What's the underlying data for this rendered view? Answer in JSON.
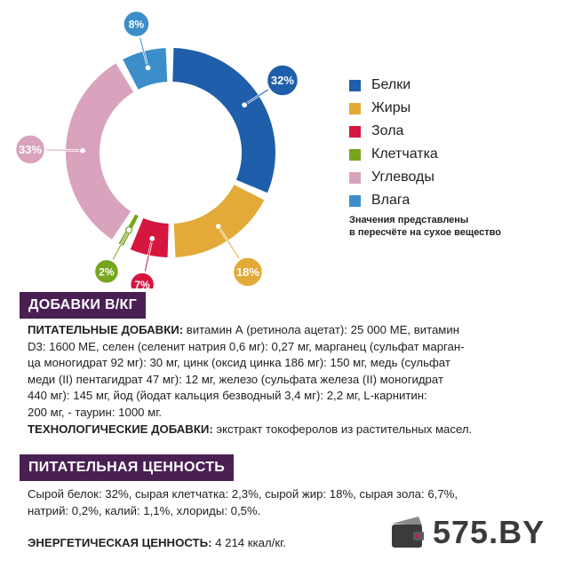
{
  "chart_data": {
    "type": "pie",
    "donut": true,
    "categories": [
      "Белки",
      "Жиры",
      "Зола",
      "Клетчатка",
      "Углеводы",
      "Влага"
    ],
    "values": [
      32,
      18,
      7,
      2,
      33,
      8
    ],
    "labels": [
      "32%",
      "18%",
      "7%",
      "2%",
      "33%",
      "8%"
    ],
    "colors": [
      "#1f5eaa",
      "#e3aa38",
      "#d5163f",
      "#77a51e",
      "#d9a3bd",
      "#3b8ec9"
    ],
    "legend_position": "right",
    "note_lines": [
      "Значения представлены",
      "в пересчёте на сухое вещество"
    ]
  },
  "additives": {
    "header": "ДОБАВКИ В/КГ",
    "nutritional_label": "ПИТАТЕЛЬНЫЕ ДОБАВКИ:",
    "nutritional_lines": [
      " витамин А (ретинола ацетат): 25 000 МЕ, витамин",
      "D3: 1600 МЕ, селен (селенит натрия 0,6 мг): 0,27 мг, марганец (сульфат марган-",
      "ца моногидрат 92 мг): 30 мг, цинк (оксид цинка 186 мг): 150 мг, медь (сульфат",
      "меди (II) пентагидрат 47 мг): 12 мг, железо (сульфата железа (II) моногидрат",
      "440 мг): 145 мг, йод (йодат кальция безводный 3,4 мг): 2,2 мг, L-карнитин:",
      "200 мг, - таурин: 1000 мг."
    ],
    "tech_label": "ТЕХНОЛОГИЧЕСКИЕ ДОБАВКИ:",
    "tech_text": " экстракт токоферолов из растительных масел."
  },
  "nutrition": {
    "header": "ПИТАТЕЛЬНАЯ ЦЕННОСТЬ",
    "lines": [
      "Сырой белок: 32%, сырая клетчатка: 2,3%, сырой жир: 18%, сырая зола: 6,7%,",
      "натрий: 0,2%, калий: 1,1%, хлориды: 0,5%."
    ],
    "energy_label": "ЭНЕРГЕТИЧЕСКАЯ ЦЕННОСТЬ:",
    "energy_text": " 4 214 ккал/кг."
  },
  "watermark": {
    "text": "575.BY",
    "icon": "wallet-icon"
  }
}
